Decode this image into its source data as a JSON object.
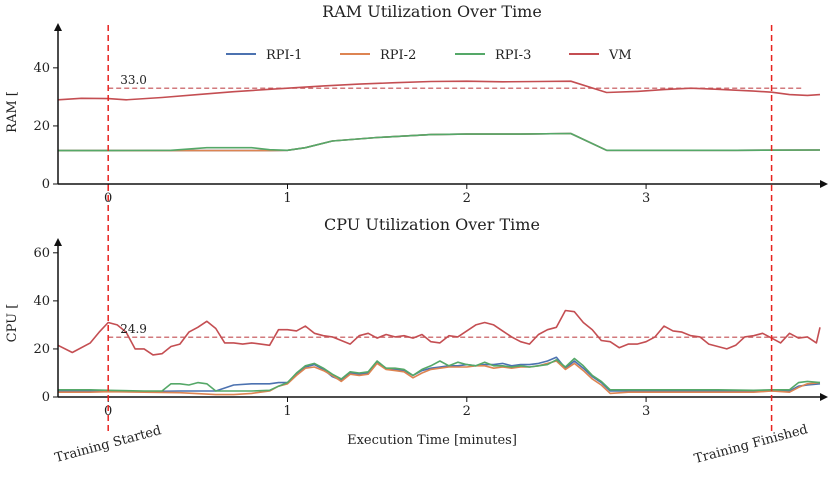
{
  "chart_data": [
    {
      "type": "line",
      "title": "RAM Utilization Over Time",
      "xlabel": "",
      "ylabel": "RAM [",
      "xlim": [
        -0.28,
        3.97
      ],
      "ylim": [
        0,
        52
      ],
      "xticks": [
        0,
        1,
        2,
        3
      ],
      "yticks": [
        0,
        20,
        40
      ],
      "legend": {
        "position": "top-center",
        "entries": [
          "RPI-1",
          "RPI-2",
          "RPI-3",
          "VM"
        ]
      },
      "mean_line": {
        "value": 33.0,
        "label": "33.0",
        "x_start": 0
      },
      "series": [
        {
          "name": "RPI-1",
          "color": "#4c72b0",
          "x": [
            -0.28,
            0.0,
            0.5,
            0.9,
            1.0,
            1.1,
            1.25,
            1.5,
            1.8,
            2.0,
            2.3,
            2.58,
            2.78,
            3.0,
            3.5,
            3.97
          ],
          "y": [
            11.5,
            11.5,
            11.5,
            11.5,
            11.6,
            12.5,
            14.8,
            16.0,
            17.0,
            17.2,
            17.2,
            17.4,
            11.6,
            11.6,
            11.6,
            11.7
          ]
        },
        {
          "name": "RPI-2",
          "color": "#dd8452",
          "x": [
            -0.28,
            0.0,
            0.5,
            0.9,
            1.0,
            1.1,
            1.25,
            1.5,
            1.8,
            2.0,
            2.3,
            2.58,
            2.78,
            3.0,
            3.5,
            3.97
          ],
          "y": [
            11.5,
            11.5,
            11.5,
            11.5,
            11.6,
            12.5,
            14.8,
            16.0,
            17.0,
            17.2,
            17.2,
            17.4,
            11.6,
            11.6,
            11.6,
            11.7
          ]
        },
        {
          "name": "RPI-3",
          "color": "#55a868",
          "x": [
            -0.28,
            0.0,
            0.35,
            0.55,
            0.8,
            0.9,
            1.0,
            1.1,
            1.25,
            1.5,
            1.8,
            2.0,
            2.3,
            2.58,
            2.78,
            3.0,
            3.5,
            3.97
          ],
          "y": [
            11.5,
            11.5,
            11.6,
            12.5,
            12.5,
            11.8,
            11.6,
            12.5,
            14.8,
            16.0,
            17.0,
            17.2,
            17.2,
            17.4,
            11.6,
            11.6,
            11.6,
            11.7
          ]
        },
        {
          "name": "VM",
          "color": "#c44e52",
          "x": [
            -0.28,
            -0.15,
            0.0,
            0.1,
            0.3,
            0.5,
            0.7,
            0.9,
            1.0,
            1.2,
            1.4,
            1.6,
            1.8,
            2.0,
            2.2,
            2.4,
            2.58,
            2.78,
            2.95,
            3.1,
            3.25,
            3.4,
            3.6,
            3.7,
            3.8,
            3.9,
            3.97
          ],
          "y": [
            29.0,
            29.5,
            29.4,
            29.0,
            29.8,
            30.8,
            31.8,
            32.6,
            33.0,
            33.8,
            34.4,
            34.9,
            35.3,
            35.4,
            35.2,
            35.3,
            35.4,
            31.5,
            31.9,
            32.5,
            33.0,
            32.6,
            32.0,
            31.6,
            30.8,
            30.5,
            30.8
          ]
        }
      ]
    },
    {
      "type": "line",
      "title": "CPU Utilization Over Time",
      "xlabel": "Execution Time [minutes]",
      "ylabel": "CPU [",
      "xlim": [
        -0.28,
        3.97
      ],
      "ylim": [
        0,
        62
      ],
      "xticks": [
        0,
        1,
        2,
        3
      ],
      "yticks": [
        0,
        20,
        40,
        60
      ],
      "mean_line": {
        "value": 24.9,
        "label": "24.9",
        "x_start": 0
      },
      "series": [
        {
          "name": "RPI-1",
          "color": "#4c72b0",
          "x": [
            -0.28,
            -0.1,
            0.0,
            0.2,
            0.4,
            0.6,
            0.7,
            0.8,
            0.9,
            0.95,
            1.0,
            1.05,
            1.1,
            1.15,
            1.2,
            1.25,
            1.3,
            1.35,
            1.4,
            1.45,
            1.5,
            1.55,
            1.6,
            1.65,
            1.7,
            1.75,
            1.8,
            1.85,
            1.9,
            1.95,
            2.0,
            2.05,
            2.1,
            2.15,
            2.2,
            2.25,
            2.3,
            2.35,
            2.4,
            2.45,
            2.5,
            2.55,
            2.6,
            2.65,
            2.7,
            2.75,
            2.8,
            2.9,
            3.0,
            3.2,
            3.4,
            3.6,
            3.7,
            3.8,
            3.85,
            3.9,
            3.97
          ],
          "y": [
            2.5,
            2.5,
            2.5,
            2.3,
            2.5,
            2.5,
            5.0,
            5.5,
            5.5,
            6.0,
            6.0,
            9.5,
            12.5,
            13.5,
            11.5,
            8.5,
            7.0,
            10.0,
            9.5,
            10.0,
            14.5,
            12.0,
            11.5,
            11.0,
            9.0,
            11.0,
            12.0,
            12.5,
            13.0,
            13.0,
            13.5,
            13.0,
            13.5,
            13.5,
            14.0,
            13.0,
            13.5,
            13.5,
            14.0,
            15.0,
            16.5,
            12.0,
            15.0,
            12.0,
            8.5,
            6.0,
            2.5,
            2.5,
            2.5,
            2.6,
            2.5,
            2.5,
            2.6,
            2.5,
            4.5,
            5.0,
            5.5
          ]
        },
        {
          "name": "RPI-2",
          "color": "#dd8452",
          "x": [
            -0.28,
            -0.1,
            0.0,
            0.2,
            0.4,
            0.6,
            0.7,
            0.8,
            0.9,
            0.95,
            1.0,
            1.05,
            1.1,
            1.15,
            1.2,
            1.25,
            1.3,
            1.35,
            1.4,
            1.45,
            1.5,
            1.55,
            1.6,
            1.65,
            1.7,
            1.75,
            1.8,
            1.85,
            1.9,
            1.95,
            2.0,
            2.05,
            2.1,
            2.15,
            2.2,
            2.25,
            2.3,
            2.35,
            2.4,
            2.45,
            2.5,
            2.55,
            2.6,
            2.65,
            2.7,
            2.75,
            2.8,
            2.9,
            3.0,
            3.2,
            3.4,
            3.6,
            3.7,
            3.8,
            3.85,
            3.9,
            3.97
          ],
          "y": [
            2.0,
            2.0,
            2.2,
            2.0,
            1.8,
            1.0,
            1.0,
            1.5,
            2.5,
            4.5,
            5.5,
            9.0,
            12.0,
            12.5,
            11.0,
            9.0,
            6.5,
            9.5,
            9.0,
            9.5,
            14.0,
            11.5,
            11.0,
            10.5,
            8.0,
            10.0,
            11.5,
            12.0,
            12.5,
            12.5,
            12.5,
            13.0,
            13.0,
            12.0,
            12.5,
            12.0,
            12.5,
            12.5,
            13.0,
            14.0,
            15.0,
            11.5,
            14.0,
            11.0,
            7.5,
            5.0,
            1.5,
            2.0,
            2.0,
            2.0,
            2.0,
            2.0,
            2.5,
            2.0,
            4.0,
            5.5,
            6.0
          ]
        },
        {
          "name": "RPI-3",
          "color": "#55a868",
          "x": [
            -0.28,
            -0.1,
            0.0,
            0.2,
            0.3,
            0.35,
            0.4,
            0.45,
            0.5,
            0.55,
            0.6,
            0.7,
            0.8,
            0.9,
            0.95,
            1.0,
            1.05,
            1.1,
            1.15,
            1.2,
            1.25,
            1.3,
            1.35,
            1.4,
            1.45,
            1.5,
            1.55,
            1.6,
            1.65,
            1.7,
            1.75,
            1.8,
            1.85,
            1.9,
            1.95,
            2.0,
            2.05,
            2.1,
            2.15,
            2.2,
            2.25,
            2.3,
            2.35,
            2.4,
            2.45,
            2.5,
            2.55,
            2.6,
            2.65,
            2.7,
            2.75,
            2.8,
            2.9,
            3.0,
            3.2,
            3.4,
            3.6,
            3.7,
            3.8,
            3.85,
            3.9,
            3.97
          ],
          "y": [
            3.0,
            3.0,
            2.8,
            2.5,
            2.5,
            5.5,
            5.5,
            5.0,
            6.0,
            5.5,
            2.5,
            2.5,
            2.5,
            2.8,
            4.5,
            6.0,
            10.0,
            13.0,
            14.0,
            12.0,
            9.5,
            7.5,
            10.5,
            10.0,
            10.5,
            15.0,
            12.0,
            12.0,
            11.5,
            9.0,
            11.5,
            13.0,
            15.0,
            13.0,
            14.5,
            13.5,
            13.0,
            14.5,
            13.0,
            13.0,
            12.5,
            13.0,
            12.5,
            13.0,
            13.5,
            15.5,
            12.5,
            16.0,
            13.0,
            9.0,
            6.5,
            3.0,
            3.0,
            3.0,
            3.0,
            3.0,
            2.8,
            3.0,
            3.0,
            6.0,
            6.5,
            6.0
          ]
        },
        {
          "name": "VM",
          "color": "#c44e52",
          "x": [
            -0.28,
            -0.2,
            -0.1,
            -0.05,
            0.0,
            0.05,
            0.1,
            0.15,
            0.2,
            0.25,
            0.3,
            0.35,
            0.4,
            0.45,
            0.5,
            0.55,
            0.6,
            0.65,
            0.7,
            0.75,
            0.8,
            0.85,
            0.9,
            0.95,
            1.0,
            1.05,
            1.1,
            1.15,
            1.2,
            1.25,
            1.3,
            1.35,
            1.4,
            1.45,
            1.5,
            1.55,
            1.6,
            1.65,
            1.7,
            1.75,
            1.8,
            1.85,
            1.9,
            1.95,
            2.0,
            2.05,
            2.1,
            2.15,
            2.2,
            2.25,
            2.3,
            2.35,
            2.4,
            2.45,
            2.5,
            2.55,
            2.6,
            2.65,
            2.7,
            2.75,
            2.8,
            2.85,
            2.9,
            2.95,
            3.0,
            3.05,
            3.1,
            3.15,
            3.2,
            3.25,
            3.3,
            3.35,
            3.4,
            3.45,
            3.5,
            3.55,
            3.6,
            3.65,
            3.7,
            3.75,
            3.8,
            3.85,
            3.9,
            3.95,
            3.97
          ],
          "y": [
            21.5,
            18.5,
            22.5,
            27.0,
            31.0,
            30.0,
            27.0,
            20.0,
            20.0,
            17.5,
            18.0,
            21.0,
            22.0,
            27.0,
            29.0,
            31.5,
            28.5,
            22.5,
            22.5,
            22.0,
            22.5,
            22.0,
            21.5,
            28.0,
            28.0,
            27.5,
            29.5,
            26.5,
            25.5,
            25.0,
            23.5,
            22.0,
            25.5,
            26.5,
            24.5,
            26.0,
            25.0,
            25.5,
            24.5,
            26.0,
            23.0,
            22.5,
            25.5,
            25.0,
            27.5,
            30.0,
            31.0,
            30.0,
            27.5,
            25.0,
            23.0,
            22.0,
            26.0,
            28.0,
            29.0,
            36.0,
            35.5,
            31.0,
            28.0,
            23.5,
            23.0,
            20.5,
            22.0,
            22.0,
            23.0,
            25.0,
            29.5,
            27.5,
            27.0,
            25.5,
            25.0,
            22.0,
            21.0,
            20.0,
            21.5,
            25.0,
            25.5,
            26.5,
            24.5,
            22.5,
            26.5,
            24.5,
            25.0,
            22.5,
            29.0
          ]
        }
      ]
    }
  ],
  "annotations": {
    "start_marker": {
      "x": 0,
      "label": "Training Started"
    },
    "end_marker": {
      "x": 3.7,
      "label": "Training Finished"
    },
    "marker_color": "#e8231f",
    "mean_color": "#c44e52"
  }
}
